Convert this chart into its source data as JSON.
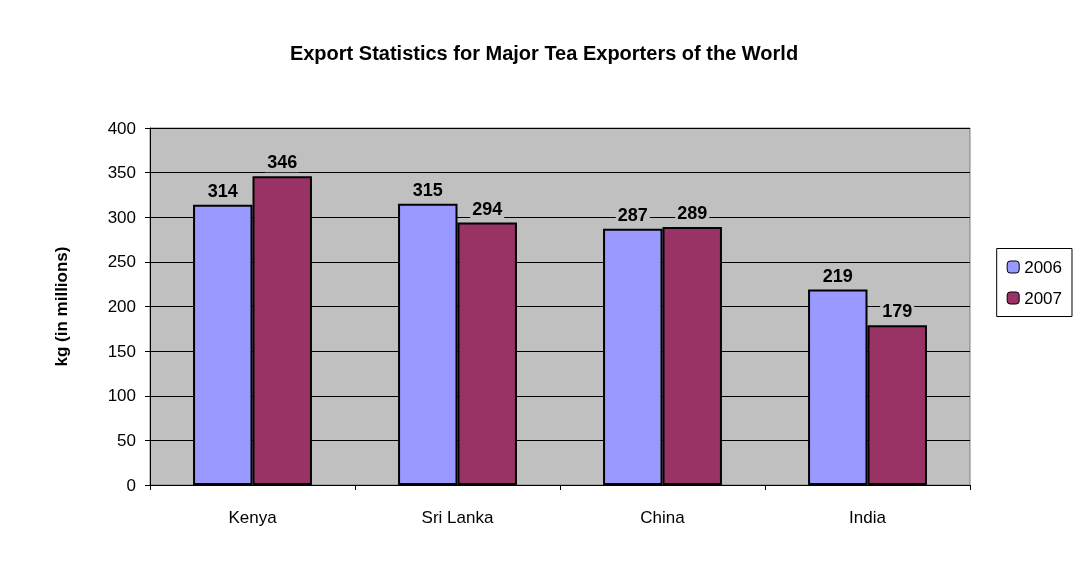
{
  "chart_data": {
    "type": "bar",
    "title": "Export Statistics for Major Tea Exporters of the World",
    "ylabel": "kg (in millions)",
    "categories": [
      "Kenya",
      "Sri Lanka",
      "China",
      "India"
    ],
    "series": [
      {
        "name": "2006",
        "color": "#9999ff",
        "values": [
          314,
          315,
          287,
          219
        ]
      },
      {
        "name": "2007",
        "color": "#993366",
        "values": [
          346,
          294,
          289,
          179
        ]
      }
    ],
    "ylim": [
      0,
      400
    ],
    "yticks": [
      0,
      50,
      100,
      150,
      200,
      250,
      300,
      350,
      400
    ],
    "grid": "y",
    "legend": "right",
    "data_labels": true
  }
}
